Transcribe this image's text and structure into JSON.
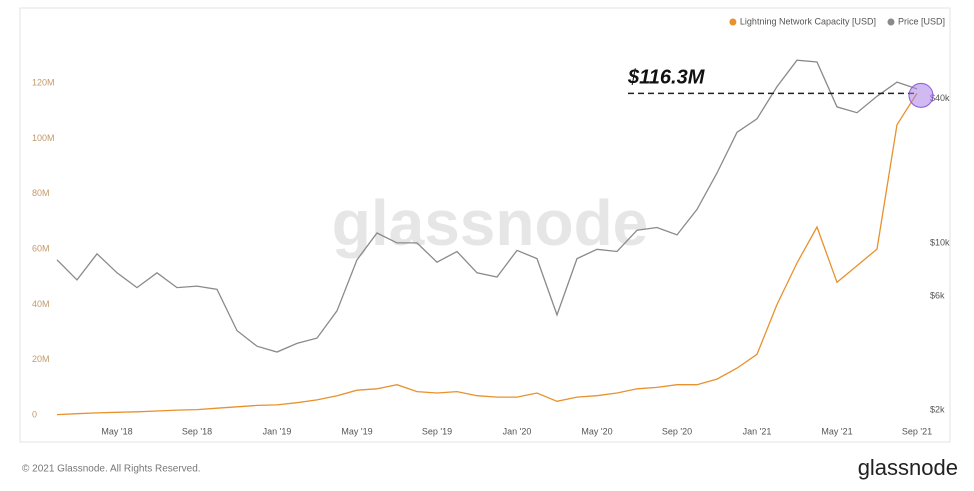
{
  "chart_data": {
    "type": "line",
    "categories": [
      null,
      null,
      null,
      "May '18",
      null,
      null,
      null,
      "Sep '18",
      null,
      null,
      null,
      "Jan '19",
      null,
      null,
      null,
      "May '19",
      null,
      null,
      null,
      "Sep '19",
      null,
      null,
      null,
      "Jan '20",
      null,
      null,
      null,
      "May '20",
      null,
      null,
      null,
      "Sep '20",
      null,
      null,
      null,
      "Jan '21",
      null,
      null,
      null,
      "May '21",
      null,
      null,
      null,
      "Sep '21"
    ],
    "series": [
      {
        "name": "Lightning Network Capacity [USD]",
        "color": "#e8912d",
        "values": [
          200000,
          500000,
          800000,
          1000000,
          1200000,
          1500000,
          1800000,
          2000000,
          2500000,
          3000000,
          3500000,
          3700000,
          4500000,
          5500000,
          7000000,
          9000000,
          9500000,
          11000000,
          8500000,
          8000000,
          8500000,
          7000000,
          6500000,
          6500000,
          8000000,
          5000000,
          6500000,
          7000000,
          8000000,
          9500000,
          10000000,
          11000000,
          11000000,
          13000000,
          17000000,
          22000000,
          40000000,
          55000000,
          68000000,
          48000000,
          54000000,
          60000000,
          105000000,
          116300000
        ]
      },
      {
        "name": "Price [USD]",
        "color": "#8a8a8a",
        "axis": "y2",
        "values": [
          8500,
          7000,
          9000,
          7500,
          6500,
          7500,
          6500,
          6600,
          6400,
          4300,
          3700,
          3500,
          3800,
          4000,
          5200,
          8500,
          11000,
          10000,
          10000,
          8300,
          9200,
          7500,
          7200,
          9300,
          8600,
          5000,
          8600,
          9400,
          9200,
          11300,
          11600,
          10800,
          13800,
          19600,
          29000,
          33000,
          45000,
          58000,
          57000,
          37000,
          35000,
          41000,
          47000,
          44000
        ]
      }
    ],
    "ylim": [
      -9000000,
      132000000
    ],
    "yticks": [
      0,
      {
        "value": 20000000,
        "label": "20M"
      },
      {
        "value": 40000000,
        "label": "40M"
      },
      {
        "value": 60000000,
        "label": "60M"
      },
      {
        "value": 80000000,
        "label": "80M"
      },
      {
        "value": 100000000,
        "label": "100M"
      },
      {
        "value": 120000000,
        "label": "120M"
      }
    ],
    "y2lim": [
      1500,
      64000
    ],
    "y2_log": true,
    "y2ticks": [
      {
        "value": 2000,
        "label": "$2k"
      },
      {
        "value": 6000,
        "label": "$6k"
      },
      {
        "value": 10000,
        "label": "$10k"
      },
      {
        "value": 40000,
        "label": "$40k"
      }
    ],
    "legend": "top-right",
    "annotation": "$116.3M",
    "watermark": "glassnode",
    "footer": "© 2021 Glassnode. All Rights Reserved.",
    "logo": "glassnode"
  }
}
